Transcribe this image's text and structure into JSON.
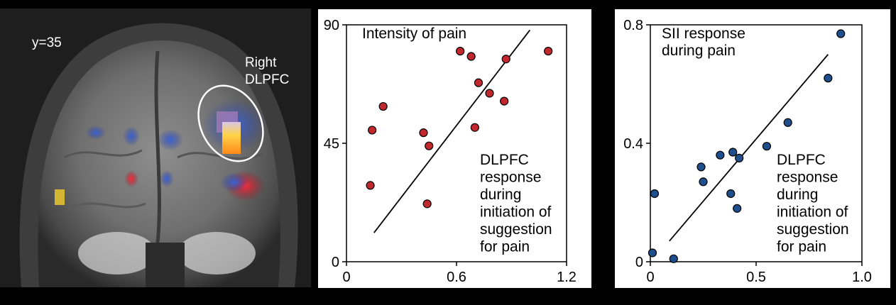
{
  "brain": {
    "slice_label": "y=35",
    "region_label_line1": "Right",
    "region_label_line2": "DLPFC"
  },
  "chart_data": [
    {
      "type": "scatter",
      "title_lines": [
        "Intensity of  pain"
      ],
      "annotation_lines": [
        "DLPFC",
        "response",
        "during",
        "initiation of",
        "suggestion",
        "for pain"
      ],
      "xlim": [
        0,
        1.2
      ],
      "ylim": [
        0,
        90
      ],
      "xticks": [
        0,
        0.6,
        1.2
      ],
      "xtick_labels": [
        "0",
        "0.6",
        "1.2"
      ],
      "yticks": [
        0,
        45,
        90
      ],
      "ytick_labels": [
        "0",
        "45",
        "90"
      ],
      "grid": false,
      "point_color": "#c1272d",
      "points": [
        {
          "x": 0.13,
          "y": 29
        },
        {
          "x": 0.14,
          "y": 50
        },
        {
          "x": 0.2,
          "y": 59
        },
        {
          "x": 0.42,
          "y": 49
        },
        {
          "x": 0.45,
          "y": 44
        },
        {
          "x": 0.44,
          "y": 22
        },
        {
          "x": 0.62,
          "y": 80
        },
        {
          "x": 0.68,
          "y": 78
        },
        {
          "x": 0.72,
          "y": 68
        },
        {
          "x": 0.7,
          "y": 51
        },
        {
          "x": 0.78,
          "y": 64
        },
        {
          "x": 0.86,
          "y": 61
        },
        {
          "x": 0.87,
          "y": 77
        },
        {
          "x": 1.1,
          "y": 80
        }
      ],
      "fit_line": {
        "x0": 0.15,
        "y0": 11,
        "x1": 1.0,
        "y1": 88
      }
    },
    {
      "type": "scatter",
      "title_lines": [
        "SII response",
        "during pain"
      ],
      "annotation_lines": [
        "DLPFC",
        "response",
        "during",
        "initiation of",
        "suggestion",
        "for pain"
      ],
      "xlim": [
        0,
        1.0
      ],
      "ylim": [
        0,
        0.8
      ],
      "xticks": [
        0,
        0.5,
        1.0
      ],
      "xtick_labels": [
        "0",
        "0.5",
        "1.0"
      ],
      "yticks": [
        0,
        0.4,
        0.8
      ],
      "ytick_labels": [
        "0",
        "0.4",
        "0.8"
      ],
      "grid": false,
      "point_color": "#1f4e8c",
      "points": [
        {
          "x": 0.01,
          "y": 0.03
        },
        {
          "x": 0.02,
          "y": 0.23
        },
        {
          "x": 0.11,
          "y": 0.01
        },
        {
          "x": 0.24,
          "y": 0.32
        },
        {
          "x": 0.25,
          "y": 0.27
        },
        {
          "x": 0.33,
          "y": 0.36
        },
        {
          "x": 0.38,
          "y": 0.23
        },
        {
          "x": 0.39,
          "y": 0.37
        },
        {
          "x": 0.41,
          "y": 0.18
        },
        {
          "x": 0.42,
          "y": 0.35
        },
        {
          "x": 0.55,
          "y": 0.39
        },
        {
          "x": 0.65,
          "y": 0.47
        },
        {
          "x": 0.84,
          "y": 0.62
        },
        {
          "x": 0.9,
          "y": 0.77
        }
      ],
      "fit_line": {
        "x0": 0.09,
        "y0": 0.07,
        "x1": 0.84,
        "y1": 0.7
      }
    }
  ]
}
